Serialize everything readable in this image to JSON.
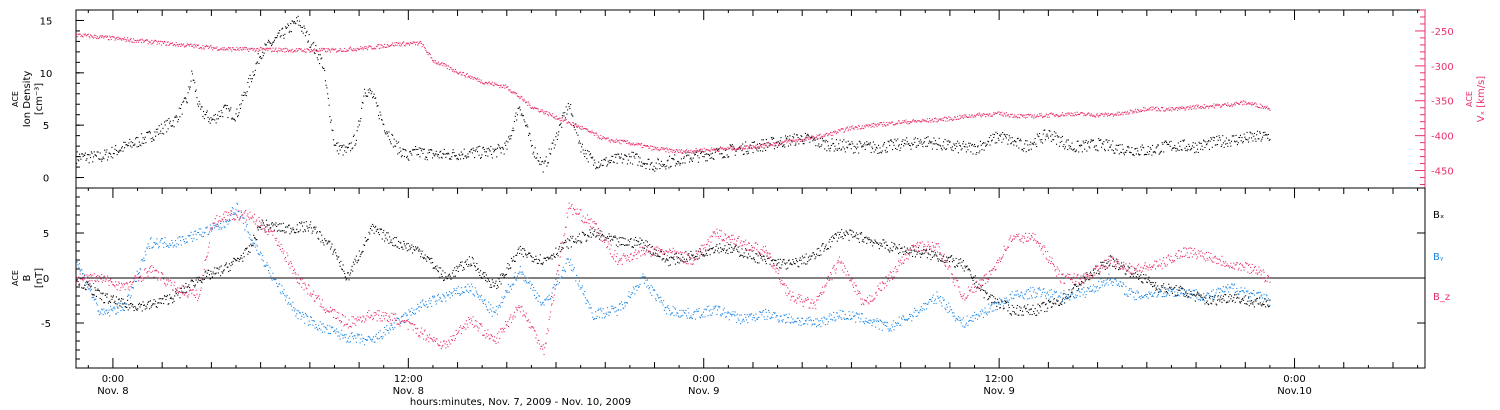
{
  "chart_data": [
    {
      "type": "scatter",
      "panel": "top",
      "xlabel": "hours:minutes, Nov. 7, 2009 - Nov. 10, 2009",
      "x_range_hours_from_nov8_0000": [
        -1.5,
        53.3
      ],
      "x_ticks": [
        {
          "h": 0,
          "time": "0:00",
          "date": "Nov. 8"
        },
        {
          "h": 12,
          "time": "12:00",
          "date": "Nov. 8"
        },
        {
          "h": 24,
          "time": "0:00",
          "date": "Nov. 9"
        },
        {
          "h": 36,
          "time": "12:00",
          "date": "Nov. 9"
        },
        {
          "h": 48,
          "time": "0:00",
          "date": "Nov.10"
        }
      ],
      "left_axis": {
        "label_lines": [
          "ACE",
          "Ion Density",
          "[cm⁻³]"
        ],
        "ylim": [
          -1,
          16
        ],
        "ticks": [
          0,
          5,
          10,
          15
        ]
      },
      "right_axis": {
        "label_lines": [
          "ACE",
          "Vₓ [km/s]"
        ],
        "ylim": [
          -475,
          -220
        ],
        "ticks": [
          -250,
          -300,
          -350,
          -400,
          -450
        ],
        "color": "#e8336a"
      },
      "series": [
        {
          "name": "Ion Density",
          "axis": "left",
          "color": "#000000",
          "x": [
            -1.5,
            -0.5,
            0.5,
            1.5,
            2.5,
            3.0,
            3.2,
            3.5,
            4.0,
            4.5,
            5.0,
            5.5,
            6.0,
            6.5,
            7.0,
            7.5,
            8.0,
            8.5,
            9.0,
            9.5,
            9.9,
            10.2,
            10.5,
            11.0,
            11.5,
            12.0,
            12.3,
            12.8,
            13.5,
            14.5,
            15.5,
            16.0,
            16.5,
            17.0,
            17.5,
            18.0,
            18.5,
            19.0,
            19.5,
            20.0,
            21.0,
            22.0,
            23.0,
            24.0,
            25.0,
            26.0,
            27.0,
            28.0,
            29.0,
            30.0,
            31.0,
            32.0,
            33.0,
            34.0,
            35.0,
            36.0,
            37.0,
            38.0,
            39.0,
            40.0,
            41.0,
            42.0,
            43.0,
            44.0,
            45.0,
            46.0,
            47.0
          ],
          "y": [
            2,
            2,
            3,
            4,
            5.5,
            7.5,
            10,
            6.5,
            5.5,
            6.5,
            6,
            9,
            12,
            13,
            14,
            15,
            13,
            11,
            3,
            2.5,
            4,
            8.5,
            8,
            5,
            3,
            2,
            2.5,
            2.3,
            2.2,
            2.4,
            2.5,
            3,
            7,
            3,
            1,
            4,
            7,
            3,
            1.5,
            1.5,
            2,
            1.2,
            1.8,
            2.2,
            2.6,
            3.0,
            3.4,
            3.8,
            3.2,
            3.0,
            2.9,
            3.2,
            3.5,
            3.0,
            2.8,
            4.0,
            3.0,
            4.2,
            2.9,
            3.2,
            2.8,
            2.6,
            3.1,
            3.0,
            3.5,
            3.8,
            4.0
          ]
        },
        {
          "name": "Vx",
          "axis": "right",
          "color": "#e8336a",
          "x": [
            -1.5,
            0,
            1.5,
            3.0,
            4.5,
            6.0,
            7.5,
            9.0,
            10.5,
            11.5,
            12.5,
            13.0,
            14.0,
            15.0,
            16.0,
            17.0,
            18.0,
            19.0,
            20.0,
            21.0,
            22.0,
            23.0,
            24.0,
            25.0,
            26.0,
            27.0,
            28.0,
            29.0,
            30.0,
            31.0,
            32.0,
            33.0,
            34.0,
            35.0,
            36.0,
            37.0,
            38.0,
            39.0,
            40.0,
            41.0,
            42.0,
            43.0,
            44.0,
            45.0,
            46.0,
            47.0
          ],
          "y": [
            -255,
            -260,
            -265,
            -270,
            -275,
            -276,
            -277,
            -277,
            -273,
            -268,
            -267,
            -292,
            -308,
            -322,
            -330,
            -358,
            -373,
            -388,
            -405,
            -410,
            -418,
            -422,
            -420,
            -418,
            -415,
            -410,
            -405,
            -398,
            -388,
            -384,
            -380,
            -378,
            -375,
            -370,
            -368,
            -372,
            -370,
            -368,
            -370,
            -368,
            -360,
            -362,
            -358,
            -356,
            -352,
            -360
          ]
        }
      ]
    },
    {
      "type": "scatter",
      "panel": "bottom",
      "left_axis": {
        "label_lines": [
          "ACE",
          "B",
          "[nT]"
        ],
        "ylim": [
          -10,
          10
        ],
        "ticks": [
          5,
          0,
          -5
        ]
      },
      "zero_line": 0,
      "series": [
        {
          "name": "Bₓ",
          "color": "#000000",
          "x": [
            -1.5,
            -0.5,
            0.5,
            1.5,
            2.5,
            3.5,
            4.5,
            5.5,
            6.0,
            7.0,
            8.0,
            9.0,
            9.5,
            10.5,
            11.5,
            12.5,
            13.5,
            14.5,
            15.5,
            16.5,
            17.5,
            18.5,
            19.5,
            20.5,
            21.5,
            22.5,
            23.5,
            24.5,
            25.5,
            26.5,
            27.5,
            28.5,
            29.5,
            30.5,
            31.5,
            32.5,
            33.5,
            34.5,
            35.5,
            36.5,
            37.5,
            38.5,
            39.5,
            40.5,
            41.5,
            42.5,
            43.5,
            44.5,
            45.5,
            46.5,
            47.0
          ],
          "y": [
            0,
            -2,
            -3,
            -3,
            -2,
            0,
            1,
            3,
            6,
            5.5,
            5.8,
            3,
            0,
            5.5,
            4,
            3,
            0,
            2,
            -1,
            3,
            2,
            4,
            5,
            4,
            4,
            2,
            2.5,
            3.5,
            3,
            2,
            1.5,
            2.5,
            5,
            4.5,
            3.5,
            3.0,
            2.5,
            1.5,
            -2,
            -3.5,
            -3.5,
            -2.5,
            0,
            2,
            0.5,
            -1,
            -1.5,
            -2.5,
            -2,
            -2.8,
            -2.5
          ]
        },
        {
          "name": "Bᵧ",
          "color": "#1e88e5",
          "x": [
            -1.5,
            -0.5,
            0.5,
            1.5,
            2.5,
            3.5,
            4.5,
            5.0,
            5.5,
            6.5,
            7.5,
            8.5,
            9.5,
            10.5,
            11.5,
            12.5,
            13.5,
            14.5,
            15.5,
            16.5,
            17.5,
            18.5,
            19.5,
            20.5,
            21.5,
            22.5,
            23.5,
            24.5,
            25.5,
            26.5,
            27.5,
            28.5,
            29.5,
            30.5,
            31.5,
            32.5,
            33.5,
            34.5,
            35.5,
            36.5,
            37.5,
            38.5,
            39.5,
            40.5,
            41.5,
            42.5,
            43.5,
            44.5,
            45.5,
            46.5,
            47.0
          ],
          "y": [
            2,
            -4,
            -3,
            4,
            4,
            5,
            6,
            8,
            5,
            0,
            -4,
            -5.5,
            -6.5,
            -7,
            -5,
            -3,
            -2,
            -1,
            -4,
            1,
            -3,
            2,
            -4,
            -3.5,
            0,
            -3.5,
            -4,
            -3.5,
            -4.5,
            -4,
            -4.5,
            -5,
            -4,
            -4.5,
            -5.5,
            -4,
            -2,
            -5,
            -3.5,
            -2,
            -1.5,
            -2,
            -1.5,
            0,
            -2,
            -1.5,
            -1.5,
            -2,
            -1,
            -2,
            -2.5
          ]
        },
        {
          "name": "B_z",
          "color": "#e8336a",
          "x": [
            -1.5,
            -0.5,
            0.5,
            1.5,
            2.5,
            3.5,
            4.0,
            4.5,
            5.5,
            6.5,
            7.5,
            8.5,
            9.5,
            10.5,
            11.5,
            12.5,
            13.5,
            14.5,
            15.5,
            16.5,
            17.5,
            18.0,
            18.5,
            19.5,
            20.5,
            21.5,
            22.5,
            23.5,
            24.5,
            25.5,
            26.5,
            27.5,
            28.5,
            29.5,
            30.5,
            31.5,
            32.5,
            33.5,
            34.5,
            35.5,
            36.5,
            37.5,
            38.5,
            39.5,
            40.5,
            41.5,
            42.5,
            43.5,
            44.5,
            45.5,
            46.5,
            47.0
          ],
          "y": [
            0,
            0,
            -1,
            1,
            -1,
            -2,
            6,
            7,
            7,
            5,
            0,
            -3,
            -5,
            -4,
            -4.5,
            -6,
            -7.5,
            -4.5,
            -7,
            -3,
            -8,
            0,
            8,
            6,
            2,
            3,
            3,
            2,
            5,
            4,
            3,
            -2,
            -3,
            2,
            -3,
            0,
            3.5,
            3.5,
            -2,
            0,
            4.5,
            4.5,
            0,
            0,
            2,
            1,
            1.5,
            3.0,
            2.5,
            1.5,
            1.0,
            -0.5
          ]
        }
      ],
      "legend": [
        {
          "label": "Bₓ",
          "color": "#000000"
        },
        {
          "label": "Bᵧ",
          "color": "#1e88e5"
        },
        {
          "label": "B_z",
          "color": "#e8336a"
        }
      ]
    }
  ]
}
